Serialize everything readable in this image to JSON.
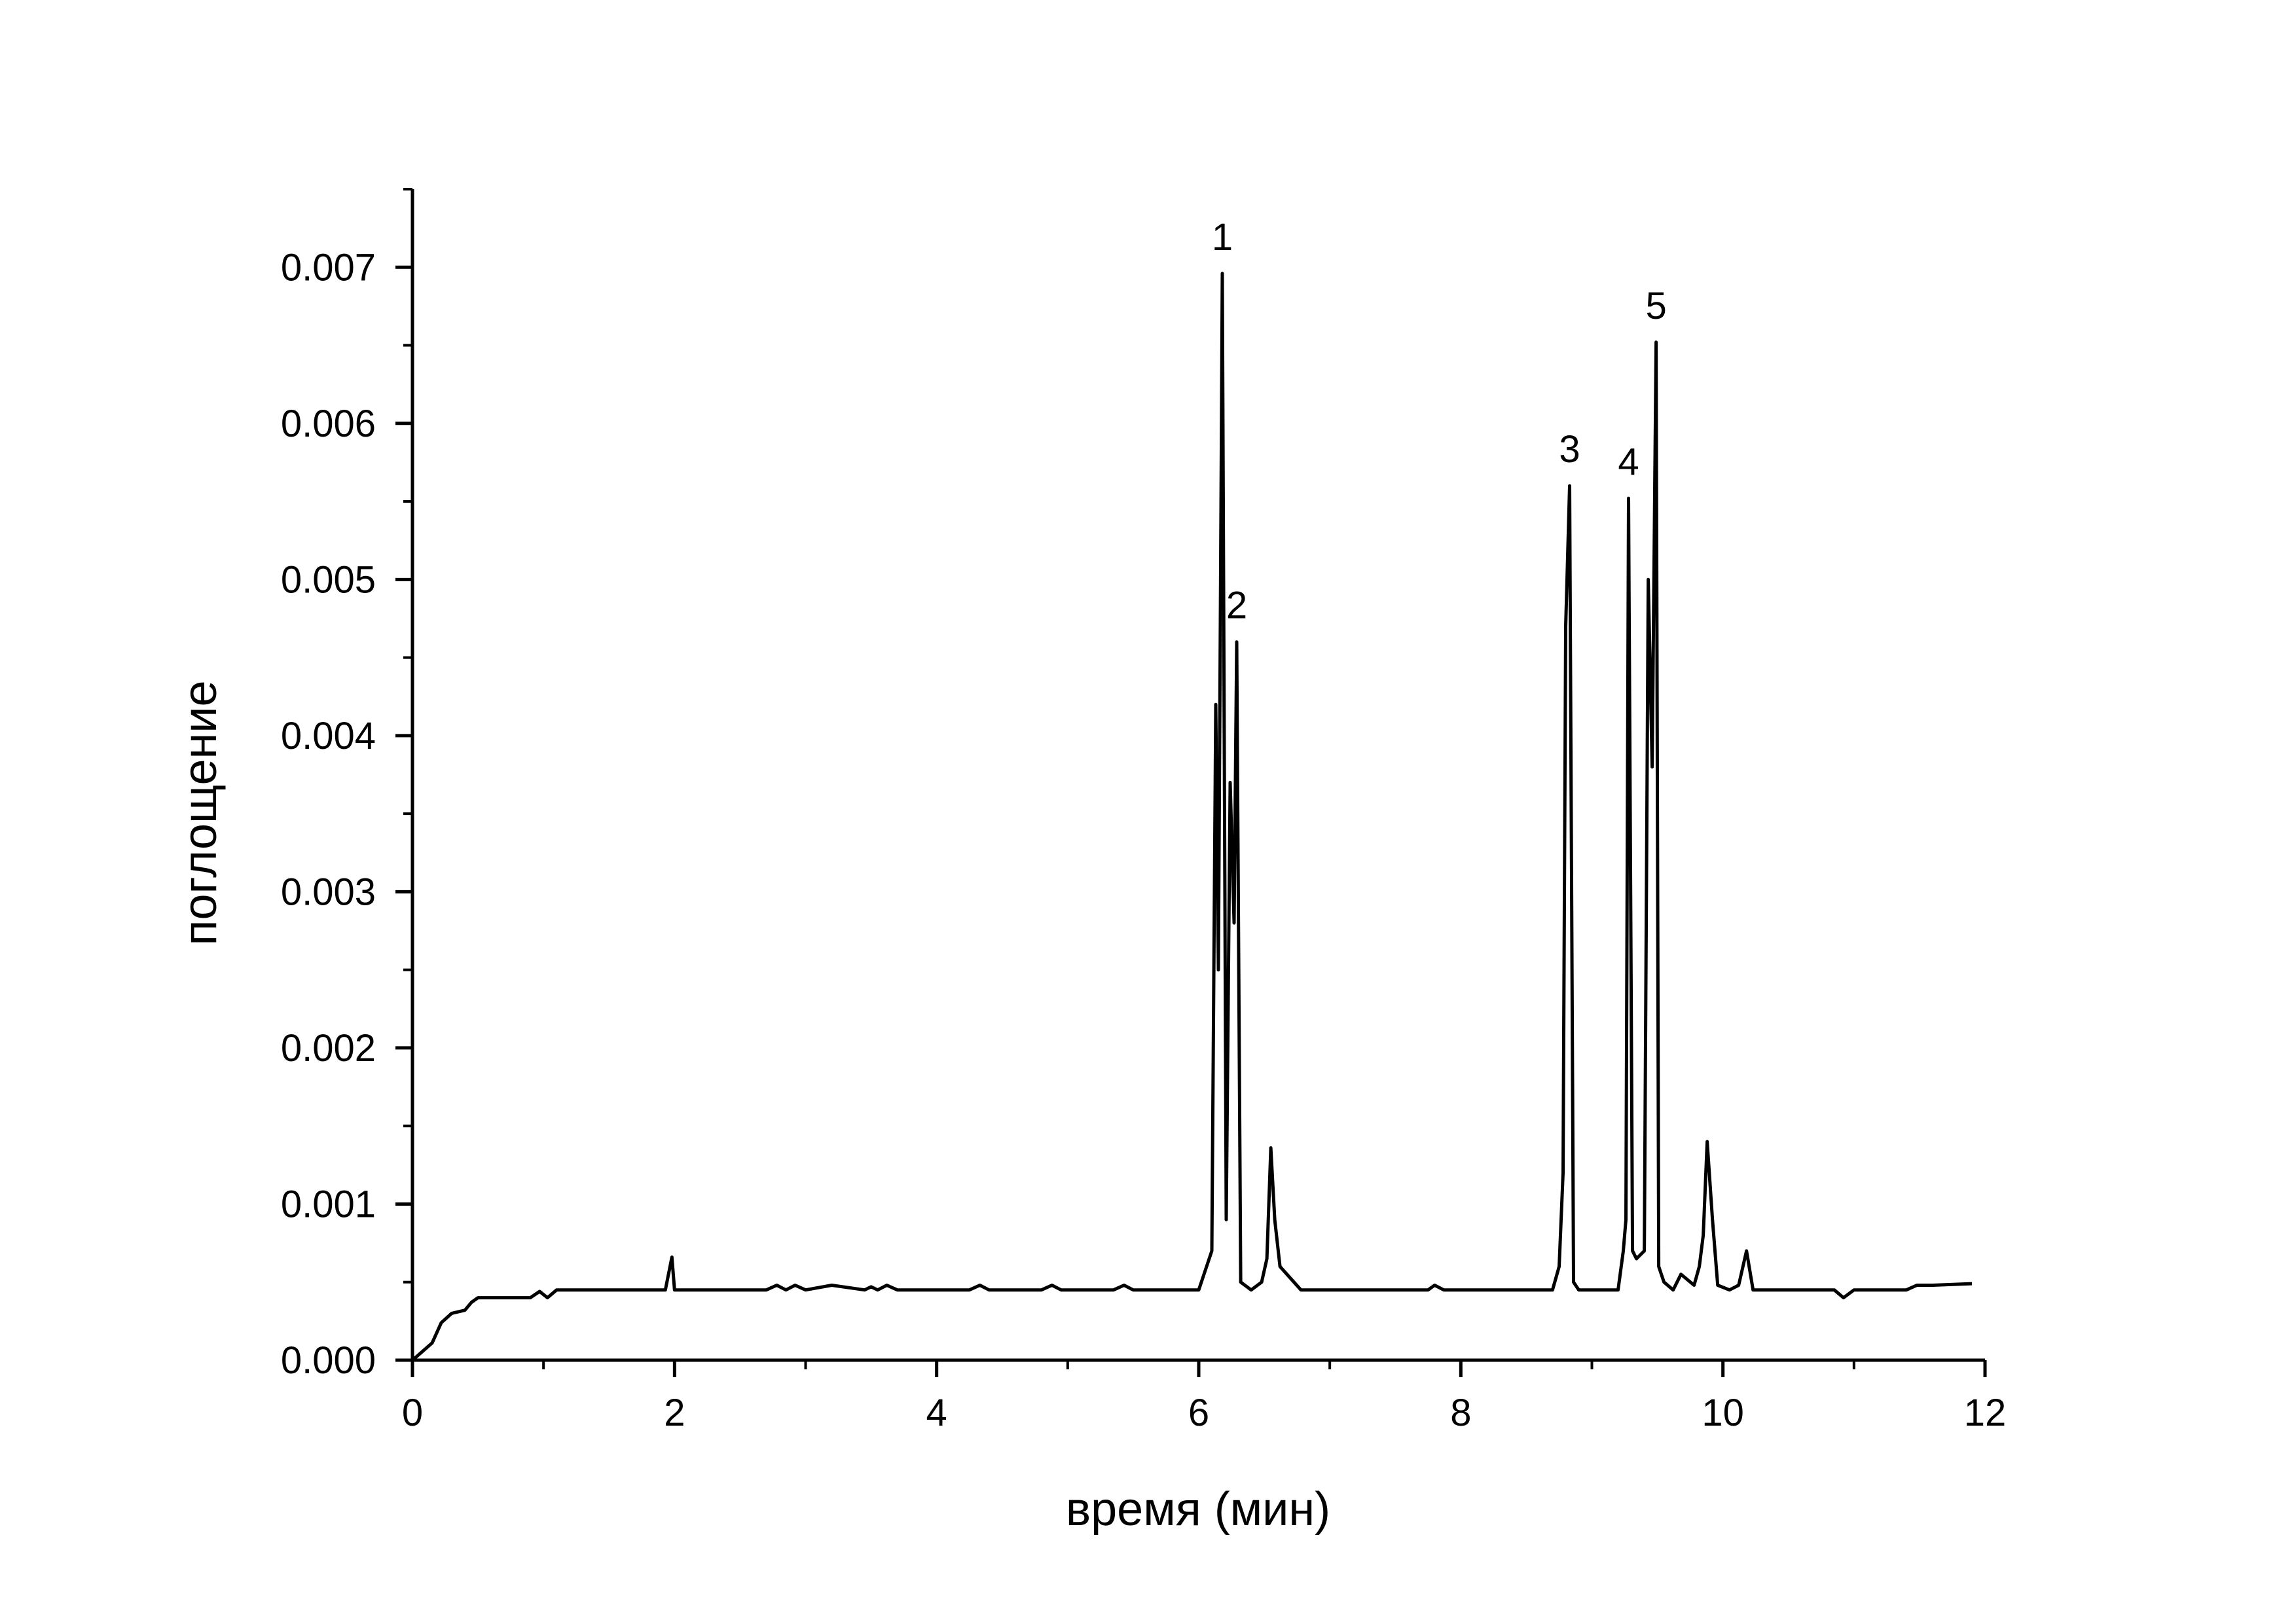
{
  "chart_data": {
    "type": "line",
    "title": "",
    "xlabel": "время (мин)",
    "ylabel": "поглощение",
    "xlim": [
      0,
      12
    ],
    "ylim": [
      0,
      0.0075
    ],
    "x_ticks": [
      0,
      2,
      4,
      6,
      8,
      10,
      12
    ],
    "x_tick_labels": [
      "0",
      "2",
      "4",
      "6",
      "8",
      "10",
      "12"
    ],
    "y_ticks": [
      0,
      0.001,
      0.002,
      0.003,
      0.004,
      0.005,
      0.006,
      0.007
    ],
    "y_tick_labels": [
      "0.000",
      "0.001",
      "0.002",
      "0.003",
      "0.004",
      "0.005",
      "0.006",
      "0.007"
    ],
    "grid": false,
    "legend": "none",
    "line_color": "#000000",
    "series": [
      {
        "x": [
          0,
          0.15,
          0.22,
          0.3,
          0.4,
          0.45,
          0.5,
          0.6,
          0.9,
          0.97,
          1.03,
          1.1,
          1.93,
          1.98,
          2.0,
          2.05,
          2.7,
          2.78,
          2.85,
          2.92,
          3.0,
          3.2,
          3.45,
          3.5,
          3.55,
          3.62,
          3.7,
          3.8,
          4.25,
          4.33,
          4.4,
          4.8,
          4.88,
          4.95,
          5.35,
          5.43,
          5.5,
          6.0,
          6.1,
          6.13,
          6.15,
          6.18,
          6.21,
          6.24,
          6.27,
          6.29,
          6.32,
          6.4,
          6.48,
          6.52,
          6.55,
          6.58,
          6.62,
          6.78,
          7.75,
          7.8,
          7.87,
          8.7,
          8.75,
          8.78,
          8.8,
          8.83,
          8.86,
          8.9,
          9.2,
          9.24,
          9.26,
          9.28,
          9.31,
          9.34,
          9.4,
          9.43,
          9.46,
          9.49,
          9.51,
          9.55,
          9.62,
          9.68,
          9.78,
          9.82,
          9.85,
          9.88,
          9.92,
          9.96,
          10.05,
          10.12,
          10.18,
          10.23,
          10.85,
          10.92,
          11.0,
          11.4,
          11.48,
          11.6,
          11.9
        ],
        "y": [
          0,
          0.00011,
          0.00024,
          0.0003,
          0.00032,
          0.00037,
          0.0004,
          0.0004,
          0.0004,
          0.00044,
          0.0004,
          0.00045,
          0.00045,
          0.00066,
          0.00045,
          0.00045,
          0.00045,
          0.00048,
          0.00045,
          0.00048,
          0.00045,
          0.00048,
          0.00045,
          0.00047,
          0.00045,
          0.00048,
          0.00045,
          0.00045,
          0.00045,
          0.00048,
          0.00045,
          0.00045,
          0.00048,
          0.00045,
          0.00045,
          0.00048,
          0.00045,
          0.00045,
          0.0007,
          0.0042,
          0.0025,
          0.00696,
          0.0009,
          0.0037,
          0.0028,
          0.0046,
          0.0005,
          0.00045,
          0.0005,
          0.00065,
          0.00136,
          0.0009,
          0.0006,
          0.00045,
          0.00045,
          0.00048,
          0.00045,
          0.00045,
          0.0006,
          0.0012,
          0.0047,
          0.0056,
          0.0005,
          0.00045,
          0.00045,
          0.0007,
          0.0009,
          0.00552,
          0.0007,
          0.00065,
          0.0007,
          0.005,
          0.0038,
          0.00652,
          0.0006,
          0.0005,
          0.00045,
          0.00055,
          0.00048,
          0.0006,
          0.0008,
          0.0014,
          0.0009,
          0.00048,
          0.00045,
          0.00048,
          0.0007,
          0.00045,
          0.00045,
          0.0004,
          0.00045,
          0.00045,
          0.00048,
          0.00048,
          0.00049
        ]
      }
    ],
    "annotations": [
      {
        "text": "1",
        "x": 6.18,
        "y": 0.00696
      },
      {
        "text": "2",
        "x": 6.29,
        "y": 0.0046
      },
      {
        "text": "3",
        "x": 8.83,
        "y": 0.0056
      },
      {
        "text": "4",
        "x": 9.28,
        "y": 0.00552
      },
      {
        "text": "5",
        "x": 9.49,
        "y": 0.00652
      }
    ]
  }
}
